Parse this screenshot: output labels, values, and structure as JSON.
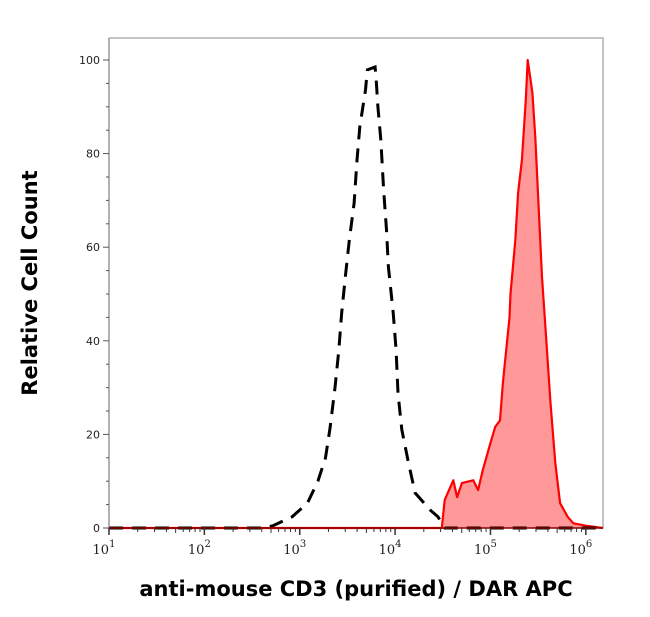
{
  "chart_data": {
    "type": "area",
    "title": "",
    "xlabel": "anti-mouse CD3 (purified) / DAR APC",
    "ylabel": "Relative Cell Count",
    "xscale": "log",
    "xlim": [
      10,
      1513561
    ],
    "ylim": [
      0,
      104.7
    ],
    "x_ticks": [
      {
        "base": "10",
        "exp": "1",
        "value": 10
      },
      {
        "base": "10",
        "exp": "2",
        "value": 100
      },
      {
        "base": "10",
        "exp": "3",
        "value": 1000
      },
      {
        "base": "10",
        "exp": "4",
        "value": 10000
      },
      {
        "base": "10",
        "exp": "5",
        "value": 100000
      },
      {
        "base": "10",
        "exp": "6",
        "value": 1000000
      }
    ],
    "y_ticks": [
      "0",
      "20",
      "40",
      "60",
      "80",
      "100"
    ],
    "grid": false,
    "legend": "none",
    "series": [
      {
        "style": "dashed line",
        "color": "#000000",
        "fill": "none",
        "x": [
          10,
          417,
          525,
          832,
          1202,
          1549,
          1862,
          2089,
          2344,
          2570,
          2754,
          3020,
          3311,
          3715,
          3981,
          4266,
          4898,
          5129,
          6166,
          6310,
          6607,
          7079,
          7586,
          8128,
          8511,
          9550,
          10233,
          10715,
          11749,
          13804,
          16218,
          23442,
          28184,
          33113,
          1513561
        ],
        "y": [
          0,
          0,
          0.5,
          2.4,
          5.3,
          10,
          15,
          21.6,
          30,
          38,
          46,
          54,
          61.5,
          69.4,
          78.6,
          85.7,
          93.6,
          97.9,
          98.5,
          96.4,
          90,
          83,
          72,
          63.7,
          55.8,
          46,
          38,
          28.8,
          21,
          13.9,
          7.5,
          3.8,
          2.4,
          0,
          0
        ]
      },
      {
        "style": "solid line, filled",
        "color": "#ff0000",
        "fill": "#ff9999",
        "x": [
          10,
          30903,
          33113,
          40738,
          44668,
          50119,
          66069,
          74131,
          83176,
          100000,
          112202,
          125893,
          134896,
          158489,
          162181,
          181970,
          194984,
          213796,
          234423,
          245471,
          275423,
          295121,
          309030,
          346737,
          380189,
          426580,
          478630,
          537032,
          645654,
          741310,
          1000000,
          1513561
        ],
        "y": [
          0,
          0,
          6,
          10.2,
          6.6,
          9.6,
          10.2,
          8.1,
          12.4,
          18.2,
          21.6,
          23,
          31,
          45,
          50,
          61.5,
          71.6,
          78.6,
          91.5,
          100,
          93,
          83.5,
          75,
          53.6,
          41.7,
          26.7,
          13.9,
          5.3,
          2.4,
          1,
          0.5,
          0
        ]
      }
    ]
  }
}
